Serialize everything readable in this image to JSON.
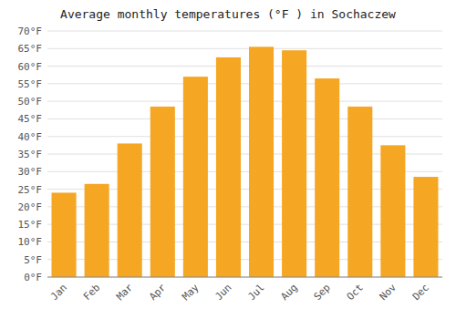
{
  "chart_data": {
    "type": "bar",
    "title": "Average monthly temperatures (°F ) in Sochaczew",
    "categories": [
      "Jan",
      "Feb",
      "Mar",
      "Apr",
      "May",
      "Jun",
      "Jul",
      "Aug",
      "Sep",
      "Oct",
      "Nov",
      "Dec"
    ],
    "values": [
      24,
      26.5,
      38,
      48.5,
      57,
      62.5,
      65.5,
      64.5,
      56.5,
      48.5,
      37.5,
      28.5
    ],
    "color": "#F5A623",
    "ylim": [
      0,
      70
    ],
    "yticks": [
      {
        "value": 0,
        "label": "0°F"
      },
      {
        "value": 5,
        "label": "5°F"
      },
      {
        "value": 10,
        "label": "10°F"
      },
      {
        "value": 15,
        "label": "15°F"
      },
      {
        "value": 20,
        "label": "20°F"
      },
      {
        "value": 25,
        "label": "25°F"
      },
      {
        "value": 30,
        "label": "30°F"
      },
      {
        "value": 35,
        "label": "35°F"
      },
      {
        "value": 40,
        "label": "40°F"
      },
      {
        "value": 45,
        "label": "45°F"
      },
      {
        "value": 50,
        "label": "50°F"
      },
      {
        "value": 55,
        "label": "55°F"
      },
      {
        "value": 60,
        "label": "60°F"
      },
      {
        "value": 65,
        "label": "65°F"
      },
      {
        "value": 70,
        "label": "70°F"
      }
    ],
    "grid": true
  }
}
